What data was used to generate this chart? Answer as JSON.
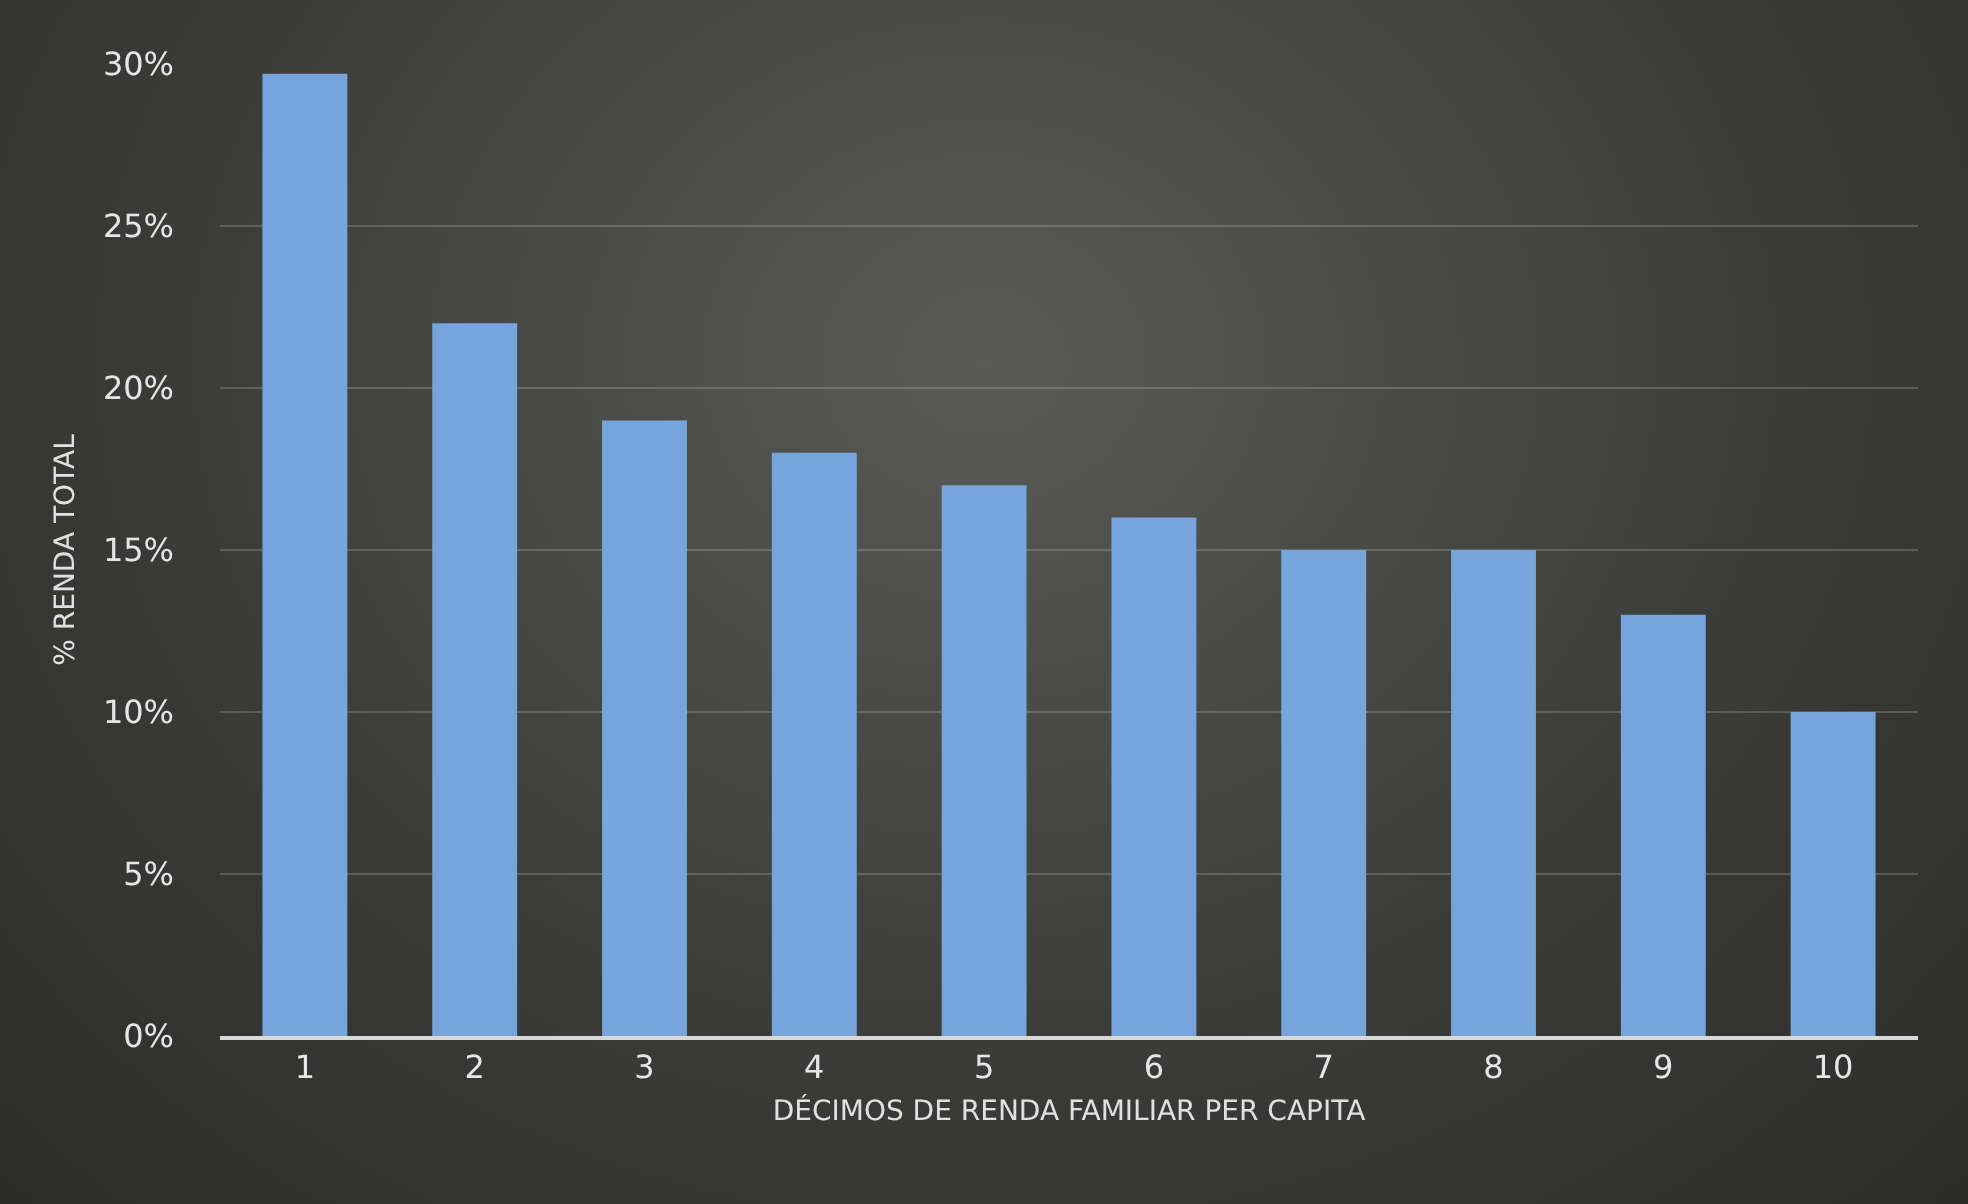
{
  "chart_data": {
    "type": "bar",
    "xlabel": "DÉCIMOS DE RENDA FAMILIAR PER CAPITA",
    "ylabel": "% RENDA TOTAL",
    "categories": [
      "1",
      "2",
      "3",
      "4",
      "5",
      "6",
      "7",
      "8",
      "9",
      "10"
    ],
    "values": [
      29.7,
      22,
      19,
      18,
      17,
      16,
      15,
      15,
      13,
      10
    ],
    "color": "#76a5dc",
    "ylim": [
      0,
      30
    ],
    "yticks": [
      {
        "value": 0,
        "label": "0%"
      },
      {
        "value": 5,
        "label": "5%"
      },
      {
        "value": 10,
        "label": "10%"
      },
      {
        "value": 15,
        "label": "15%"
      },
      {
        "value": 20,
        "label": "20%"
      },
      {
        "value": 25,
        "label": "25%"
      },
      {
        "value": 30,
        "label": "30%"
      }
    ],
    "grid": "y"
  }
}
